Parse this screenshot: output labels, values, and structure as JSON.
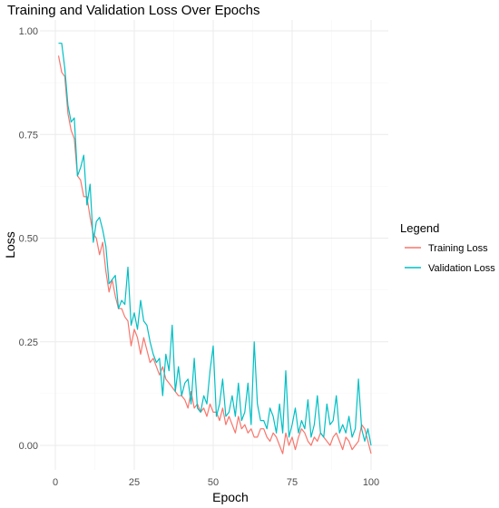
{
  "chart_data": {
    "type": "line",
    "title": "Training and Validation Loss Over Epochs",
    "xlabel": "Epoch",
    "ylabel": "Loss",
    "xlim": [
      0,
      100
    ],
    "ylim": [
      -0.05,
      1.0
    ],
    "x_ticks": [
      0,
      25,
      50,
      75,
      100
    ],
    "y_ticks": [
      0.0,
      0.25,
      0.5,
      0.75,
      1.0
    ],
    "x_tick_labels": [
      "0",
      "25",
      "50",
      "75",
      "100"
    ],
    "y_tick_labels": [
      "0.00",
      "0.25",
      "0.50",
      "0.75",
      "1.00"
    ],
    "grid": true,
    "legend": {
      "title": "Legend",
      "position": "right"
    },
    "x": [
      1,
      2,
      3,
      4,
      5,
      6,
      7,
      8,
      9,
      10,
      11,
      12,
      13,
      14,
      15,
      16,
      17,
      18,
      19,
      20,
      21,
      22,
      23,
      24,
      25,
      26,
      27,
      28,
      29,
      30,
      31,
      32,
      33,
      34,
      35,
      36,
      37,
      38,
      39,
      40,
      41,
      42,
      43,
      44,
      45,
      46,
      47,
      48,
      49,
      50,
      51,
      52,
      53,
      54,
      55,
      56,
      57,
      58,
      59,
      60,
      61,
      62,
      63,
      64,
      65,
      66,
      67,
      68,
      69,
      70,
      71,
      72,
      73,
      74,
      75,
      76,
      77,
      78,
      79,
      80,
      81,
      82,
      83,
      84,
      85,
      86,
      87,
      88,
      89,
      90,
      91,
      92,
      93,
      94,
      95,
      96,
      97,
      98,
      99,
      100
    ],
    "series": [
      {
        "name": "Training Loss",
        "color": "#F8766D",
        "values": [
          0.94,
          0.9,
          0.89,
          0.8,
          0.76,
          0.74,
          0.65,
          0.64,
          0.6,
          0.6,
          0.55,
          0.51,
          0.5,
          0.46,
          0.49,
          0.42,
          0.37,
          0.4,
          0.36,
          0.33,
          0.33,
          0.31,
          0.3,
          0.24,
          0.28,
          0.26,
          0.22,
          0.26,
          0.23,
          0.2,
          0.21,
          0.19,
          0.17,
          0.19,
          0.16,
          0.15,
          0.14,
          0.13,
          0.12,
          0.12,
          0.11,
          0.09,
          0.13,
          0.09,
          0.1,
          0.08,
          0.09,
          0.07,
          0.1,
          0.08,
          0.08,
          0.06,
          0.09,
          0.05,
          0.07,
          0.05,
          0.03,
          0.07,
          0.04,
          0.05,
          0.03,
          0.04,
          0.02,
          0.02,
          0.04,
          0.04,
          0.02,
          0.01,
          0.03,
          0.02,
          0.0,
          -0.02,
          0.03,
          0.0,
          0.02,
          -0.01,
          0.02,
          0.04,
          0.03,
          0.01,
          0.0,
          0.02,
          0.01,
          0.03,
          0.02,
          0.01,
          0.0,
          0.02,
          0.03,
          0.01,
          -0.01,
          0.02,
          0.01,
          -0.01,
          0.0,
          0.01,
          0.05,
          0.04,
          0.01,
          -0.02
        ]
      },
      {
        "name": "Validation Loss",
        "color": "#00BFC4",
        "values": [
          0.97,
          0.97,
          0.91,
          0.82,
          0.78,
          0.79,
          0.65,
          0.67,
          0.7,
          0.58,
          0.63,
          0.49,
          0.54,
          0.55,
          0.52,
          0.48,
          0.39,
          0.4,
          0.41,
          0.33,
          0.35,
          0.34,
          0.43,
          0.29,
          0.32,
          0.28,
          0.35,
          0.3,
          0.29,
          0.25,
          0.22,
          0.2,
          0.21,
          0.12,
          0.22,
          0.18,
          0.29,
          0.13,
          0.19,
          0.12,
          0.15,
          0.16,
          0.1,
          0.21,
          0.09,
          0.08,
          0.12,
          0.1,
          0.18,
          0.24,
          0.07,
          0.1,
          0.16,
          0.07,
          0.08,
          0.12,
          0.07,
          0.15,
          0.06,
          0.08,
          0.15,
          0.05,
          0.25,
          0.1,
          0.06,
          0.06,
          0.04,
          0.09,
          0.07,
          0.03,
          0.1,
          0.03,
          0.18,
          0.02,
          0.05,
          0.09,
          0.03,
          0.06,
          0.04,
          0.11,
          0.02,
          0.05,
          0.12,
          0.03,
          0.02,
          0.1,
          0.05,
          0.06,
          0.12,
          0.03,
          0.05,
          0.03,
          0.07,
          0.02,
          0.04,
          0.16,
          0.04,
          0.01,
          0.04,
          0.0
        ]
      }
    ]
  }
}
